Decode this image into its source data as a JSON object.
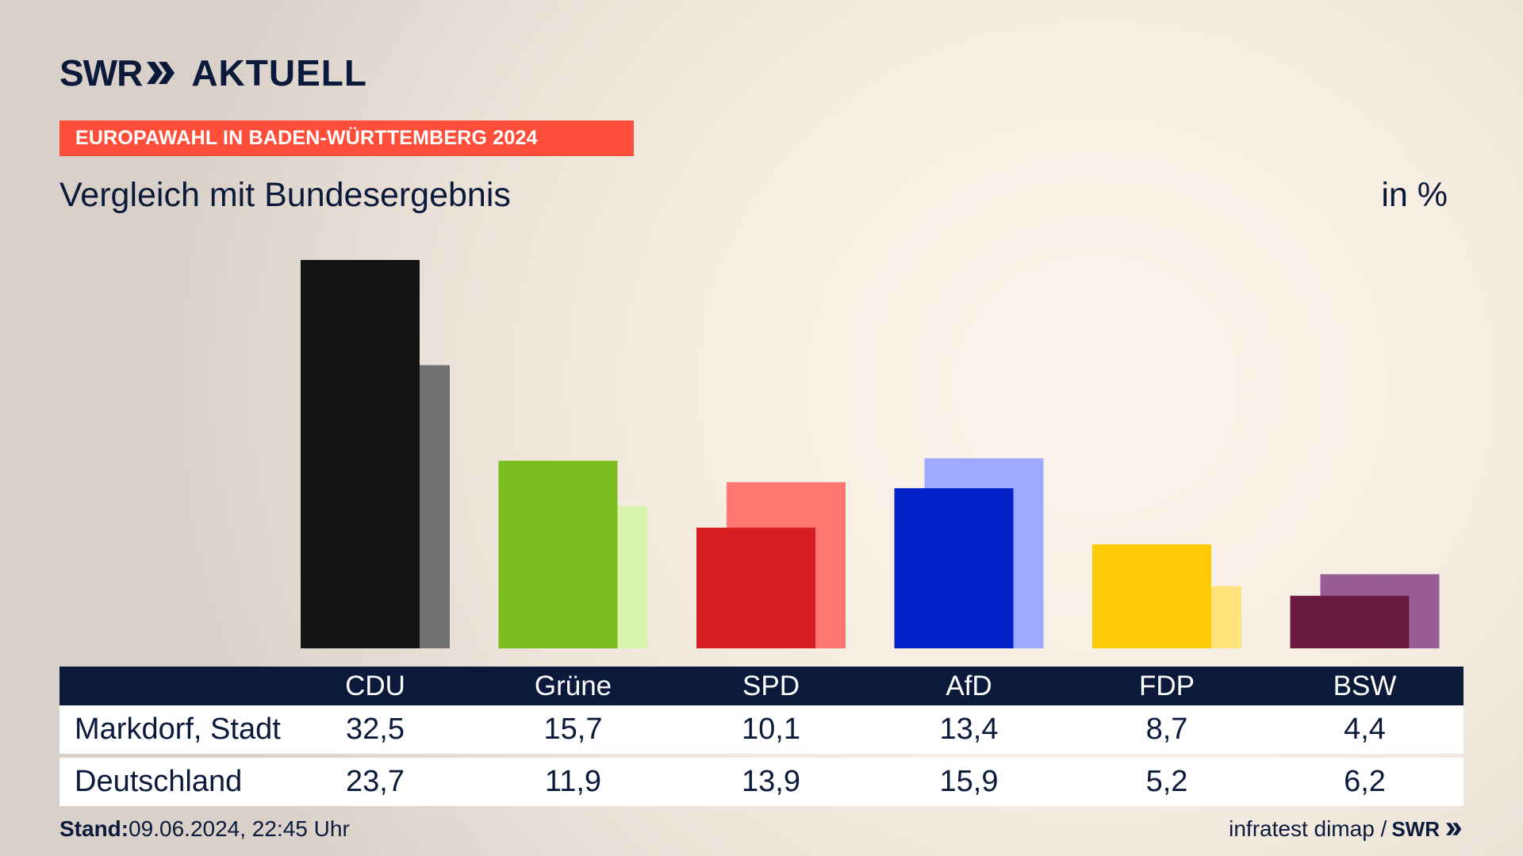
{
  "header": {
    "logo_swr": "SWR",
    "logo_aktuell": "AKTUELL",
    "banner": "EUROPAWAHL IN BADEN-WÜRTTEMBERG 2024",
    "subtitle": "Vergleich mit Bundesergebnis",
    "unit": "in %"
  },
  "chart_data": {
    "type": "bar",
    "categories": [
      "CDU",
      "Grüne",
      "SPD",
      "AfD",
      "FDP",
      "BSW"
    ],
    "series": [
      {
        "name": "Markdorf, Stadt",
        "values": [
          32.5,
          15.7,
          10.1,
          13.4,
          8.7,
          4.4
        ]
      },
      {
        "name": "Deutschland",
        "values": [
          23.7,
          11.9,
          13.9,
          15.9,
          5.2,
          6.2
        ]
      }
    ],
    "title": "Vergleich mit Bundesergebnis",
    "ylabel": "in %",
    "ylim": [
      0,
      32.5
    ],
    "grid": false,
    "colors_primary": [
      "#141414",
      "#7bbd1e",
      "#d51f20",
      "#0020c8",
      "#ffcc0a",
      "#6b1a40"
    ],
    "colors_secondary": [
      "#737171",
      "#d8f6ab",
      "#ff7570",
      "#9ca9ff",
      "#ffe27a",
      "#9a5c97"
    ],
    "value_labels_row1": [
      "32,5",
      "15,7",
      "10,1",
      "13,4",
      "8,7",
      "4,4"
    ],
    "value_labels_row2": [
      "23,7",
      "11,9",
      "13,9",
      "15,9",
      "5,2",
      "6,2"
    ]
  },
  "footer": {
    "stand_label": "Stand:",
    "stand_value": "09.06.2024, 22:45 Uhr",
    "source": "infratest dimap /",
    "source_logo": "SWR"
  }
}
